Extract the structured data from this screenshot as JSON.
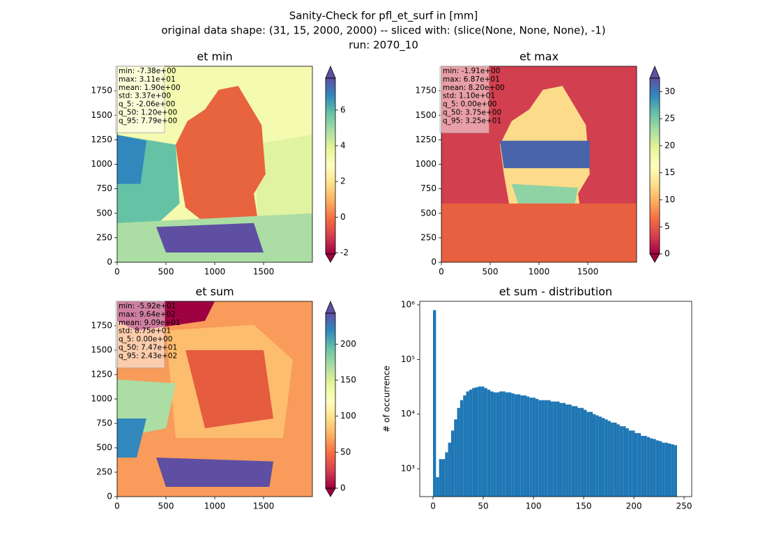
{
  "title": [
    "Sanity-Check for pfl_et_surf in [mm]",
    "original data shape: (31, 15, 2000, 2000) -- sliced with: (slice(None, None, None), -1)",
    "run: 2070_10"
  ],
  "chart_data": [
    {
      "type": "heatmap",
      "title": "et min",
      "xlim": [
        0,
        2000
      ],
      "ylim": [
        0,
        2000
      ],
      "xticks": [
        0,
        500,
        1000,
        1500
      ],
      "yticks": [
        0,
        250,
        500,
        750,
        1000,
        1250,
        1500,
        1750
      ],
      "clim": [
        -2.06,
        7.79
      ],
      "cticks": [
        -2,
        0,
        2,
        4,
        6
      ],
      "annotation": [
        "min: -7.38e+00",
        "max: 3.11e+01",
        "mean: 1.90e+00",
        "std: 3.37e+00",
        "q_5: -2.06e+00",
        "q_50: 1.20e+00",
        "q_95: 7.79e+00"
      ]
    },
    {
      "type": "heatmap",
      "title": "et max",
      "xlim": [
        0,
        2000
      ],
      "ylim": [
        0,
        2000
      ],
      "xticks": [
        0,
        500,
        1000,
        1500
      ],
      "yticks": [
        0,
        250,
        500,
        750,
        1000,
        1250,
        1500,
        1750
      ],
      "clim": [
        0,
        32.5
      ],
      "cticks": [
        0,
        5,
        10,
        15,
        20,
        25,
        30
      ],
      "annotation": [
        "min: -1.91e+00",
        "max: 6.87e+01",
        "mean: 8.20e+00",
        "std: 1.10e+01",
        "q_5: 0.00e+00",
        "q_50: 3.75e+00",
        "q_95: 3.25e+01"
      ]
    },
    {
      "type": "heatmap",
      "title": "et sum",
      "xlim": [
        0,
        2000
      ],
      "ylim": [
        0,
        2000
      ],
      "xticks": [
        0,
        500,
        1000,
        1500
      ],
      "yticks": [
        0,
        250,
        500,
        750,
        1000,
        1250,
        1500,
        1750
      ],
      "clim": [
        0,
        243
      ],
      "cticks": [
        0,
        50,
        100,
        150,
        200
      ],
      "annotation": [
        "min: -5.92e+01",
        "max: 9.64e+02",
        "mean: 9.09e+01",
        "std: 8.75e+01",
        "q_5: 0.00e+00",
        "q_50: 7.47e+01",
        "q_95: 2.43e+02"
      ]
    },
    {
      "type": "histogram",
      "title": "et sum - distribution",
      "ylabel": "# of occurrence",
      "color": "#1f77b4",
      "log_y": true,
      "xlim": [
        -13.2,
        257.6
      ],
      "ylim": [
        309,
        1160000
      ],
      "xticks": [
        0,
        50,
        100,
        150,
        200,
        250
      ],
      "yticks": [
        {
          "value": 1000,
          "label": "10³"
        },
        {
          "value": 10000,
          "label": "10⁴"
        },
        {
          "value": 100000,
          "label": "10⁵"
        },
        {
          "value": 1000000,
          "label": "10⁶"
        }
      ],
      "bins": [
        0,
        3,
        6,
        9,
        12,
        15,
        18,
        21,
        24,
        27,
        30,
        33,
        36,
        39,
        42,
        45,
        48,
        51,
        54,
        57,
        60,
        63,
        66,
        69,
        72,
        75,
        78,
        81,
        84,
        87,
        90,
        93,
        96,
        99,
        102,
        105,
        108,
        111,
        114,
        117,
        120,
        123,
        126,
        129,
        132,
        135,
        138,
        141,
        144,
        147,
        150,
        153,
        156,
        159,
        162,
        165,
        168,
        171,
        174,
        177,
        180,
        183,
        186,
        189,
        192,
        195,
        198,
        201,
        204,
        207,
        210,
        213,
        216,
        219,
        222,
        225,
        228,
        231,
        234,
        237,
        240,
        243
      ],
      "counts": [
        800000,
        700,
        1500,
        1500,
        2000,
        3000,
        5000,
        8000,
        13000,
        18000,
        22000,
        26000,
        28000,
        30000,
        31000,
        32000,
        32000,
        30000,
        28000,
        26000,
        25000,
        25000,
        26000,
        26000,
        25000,
        25000,
        24000,
        23000,
        23000,
        22000,
        22000,
        21000,
        20000,
        20000,
        19000,
        18000,
        18000,
        18000,
        18000,
        17000,
        17000,
        17000,
        16000,
        16000,
        15000,
        15000,
        14000,
        14000,
        13000,
        13000,
        12000,
        11000,
        11000,
        10000,
        9500,
        9000,
        8500,
        8000,
        7500,
        7000,
        7000,
        6500,
        6000,
        6000,
        5500,
        5000,
        5000,
        4500,
        4500,
        4000,
        4000,
        3800,
        3600,
        3500,
        3300,
        3200,
        3000,
        3000,
        2900,
        2800,
        2700
      ]
    }
  ]
}
